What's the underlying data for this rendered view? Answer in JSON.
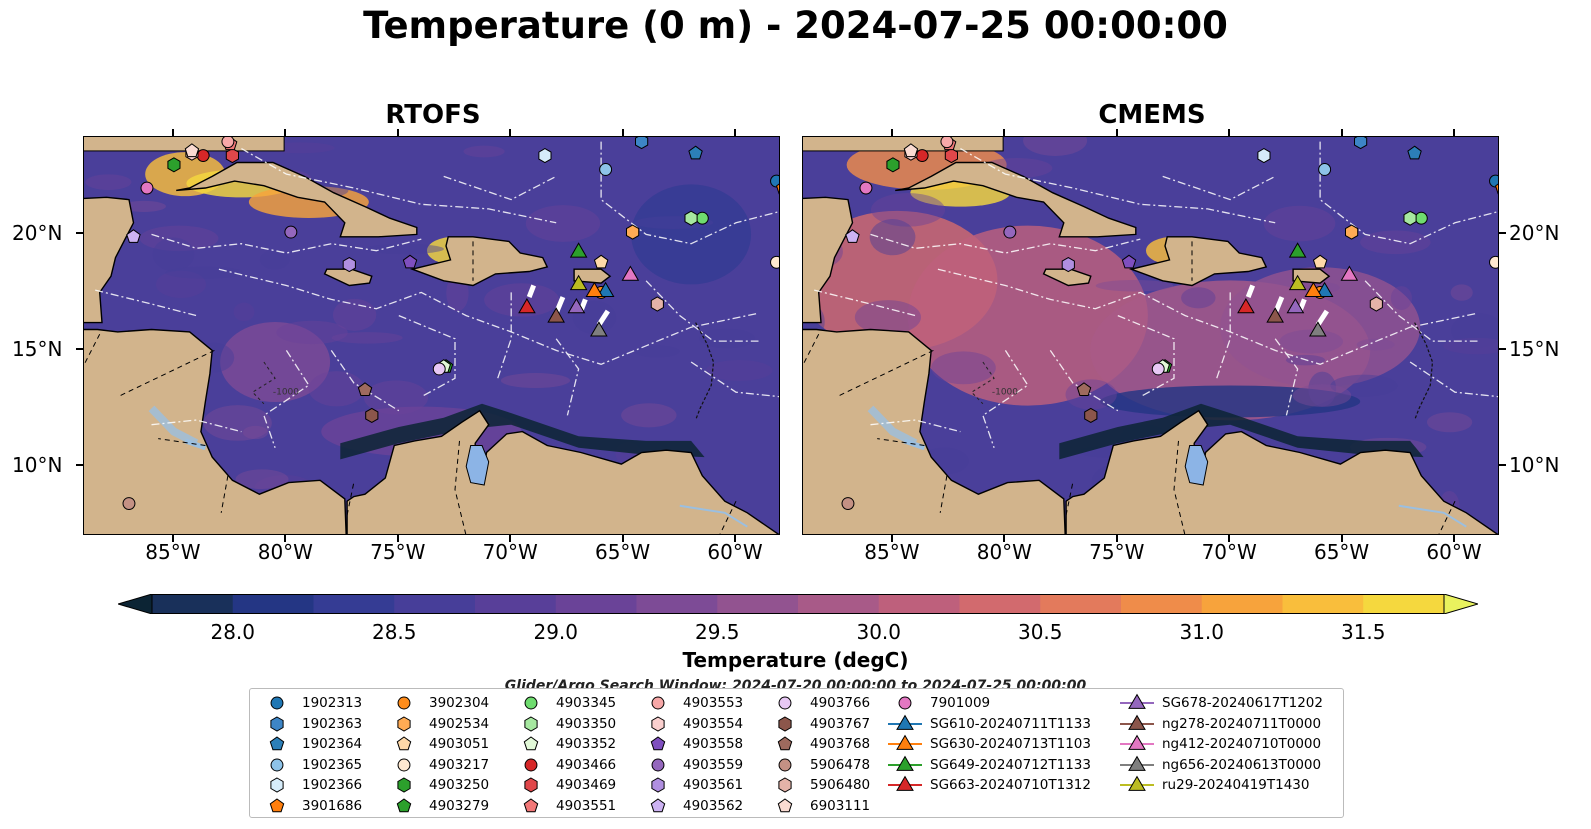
{
  "title": "Temperature (0 m) - 2024-07-25 00:00:00",
  "panels": [
    {
      "title": "RTOFS"
    },
    {
      "title": "CMEMS"
    }
  ],
  "lon_labels": [
    "85°W",
    "80°W",
    "75°W",
    "70°W",
    "65°W",
    "60°W"
  ],
  "lat_labels": [
    "20°N",
    "15°N",
    "10°N"
  ],
  "map_extent": {
    "lon": [
      -89,
      -58
    ],
    "lat": [
      7,
      24.2
    ]
  },
  "colorbar": {
    "label": "Temperature (degC)",
    "ticks": [
      "28.0",
      "28.5",
      "29.0",
      "29.5",
      "30.0",
      "30.5",
      "31.0",
      "31.5"
    ],
    "range": [
      27.75,
      31.75
    ],
    "colors": [
      "#0c2434",
      "#19305a",
      "#243684",
      "#353c94",
      "#473e99",
      "#583f99",
      "#6a4398",
      "#7d4b96",
      "#925390",
      "#a85a88",
      "#be607c",
      "#d26a6e",
      "#e37a5c",
      "#ef8c4a",
      "#f7a33c",
      "#f9be3c",
      "#f5d83e",
      "#e9f25e"
    ]
  },
  "search_window": "Glider/Argo Search Window: 2024-07-20 00:00:00 to 2024-07-25 00:00:00",
  "legend": [
    {
      "id": "1902313",
      "marker": "circle",
      "color": "#1f77b4"
    },
    {
      "id": "1902363",
      "marker": "hexagon",
      "color": "#3d85c6"
    },
    {
      "id": "1902364",
      "marker": "pentagon",
      "color": "#2c7fb8"
    },
    {
      "id": "1902365",
      "marker": "circle",
      "color": "#8ec3e8"
    },
    {
      "id": "1902366",
      "marker": "hexagon",
      "color": "#d6ecfa"
    },
    {
      "id": "3901686",
      "marker": "pentagon",
      "color": "#ff7f0e"
    },
    {
      "id": "3902304",
      "marker": "circle",
      "color": "#ff8c1a"
    },
    {
      "id": "4902534",
      "marker": "hexagon",
      "color": "#ffab54"
    },
    {
      "id": "4903051",
      "marker": "pentagon",
      "color": "#ffd9a8"
    },
    {
      "id": "4903217",
      "marker": "circle",
      "color": "#ffe9d1"
    },
    {
      "id": "4903250",
      "marker": "hexagon",
      "color": "#2ca02c"
    },
    {
      "id": "4903279",
      "marker": "pentagon",
      "color": "#2ca02c"
    },
    {
      "id": "4903345",
      "marker": "circle",
      "color": "#6fdc6f"
    },
    {
      "id": "4903350",
      "marker": "hexagon",
      "color": "#a6e8a0"
    },
    {
      "id": "4903352",
      "marker": "pentagon",
      "color": "#e2f9d8"
    },
    {
      "id": "4903466",
      "marker": "circle",
      "color": "#d62728"
    },
    {
      "id": "4903469",
      "marker": "hexagon",
      "color": "#e0474a"
    },
    {
      "id": "4903551",
      "marker": "pentagon",
      "color": "#f27878"
    },
    {
      "id": "4903553",
      "marker": "circle",
      "color": "#f7a8a8"
    },
    {
      "id": "4903554",
      "marker": "hexagon",
      "color": "#fbd0cf"
    },
    {
      "id": "4903558",
      "marker": "pentagon",
      "color": "#7f4fbf"
    },
    {
      "id": "4903559",
      "marker": "circle",
      "color": "#9467bd"
    },
    {
      "id": "4903561",
      "marker": "hexagon",
      "color": "#b08fe0"
    },
    {
      "id": "4903562",
      "marker": "pentagon",
      "color": "#cdb3f3"
    },
    {
      "id": "4903766",
      "marker": "circle",
      "color": "#e8c8f5"
    },
    {
      "id": "4903767",
      "marker": "hexagon",
      "color": "#8c564b"
    },
    {
      "id": "4903768",
      "marker": "pentagon",
      "color": "#9e6a5e"
    },
    {
      "id": "5906478",
      "marker": "circle",
      "color": "#c49184"
    },
    {
      "id": "5906480",
      "marker": "hexagon",
      "color": "#e4b3a8"
    },
    {
      "id": "6903111",
      "marker": "pentagon",
      "color": "#fadbd2"
    },
    {
      "id": "7901009",
      "marker": "circle",
      "color": "#e377c2"
    },
    {
      "id": "SG610-20240711T1133",
      "marker": "triangle-line",
      "color": "#1f77b4"
    },
    {
      "id": "SG630-20240713T1103",
      "marker": "triangle-line",
      "color": "#ff7f0e"
    },
    {
      "id": "SG649-20240712T1133",
      "marker": "triangle-line",
      "color": "#2ca02c"
    },
    {
      "id": "SG663-20240710T1312",
      "marker": "triangle-line",
      "color": "#d62728"
    },
    {
      "id": "SG678-20240617T1202",
      "marker": "triangle-line",
      "color": "#9467bd"
    },
    {
      "id": "ng278-20240711T0000",
      "marker": "triangle-line",
      "color": "#8c564b"
    },
    {
      "id": "ng412-20240710T0000",
      "marker": "triangle-line",
      "color": "#e377c2"
    },
    {
      "id": "ng656-20240613T0000",
      "marker": "triangle-line",
      "color": "#7f7f7f"
    },
    {
      "id": "ru29-20240419T1430",
      "marker": "triangle-line",
      "color": "#bcbd22"
    }
  ],
  "observations": [
    {
      "id": "1902313",
      "lon": -58.2,
      "lat": 22.3
    },
    {
      "id": "1902363",
      "lon": -64.2,
      "lat": 24.0
    },
    {
      "id": "1902364",
      "lon": -61.8,
      "lat": 23.5
    },
    {
      "id": "1902365",
      "lon": -65.8,
      "lat": 22.8
    },
    {
      "id": "1902366",
      "lon": -68.5,
      "lat": 23.4
    },
    {
      "id": "3901686",
      "lon": -57.9,
      "lat": 22.0
    },
    {
      "id": "3902304",
      "lon": -66.0,
      "lat": 17.5
    },
    {
      "id": "4902534",
      "lon": -64.6,
      "lat": 20.1
    },
    {
      "id": "4903051",
      "lon": -66.0,
      "lat": 18.8
    },
    {
      "id": "4903217",
      "lon": -58.2,
      "lat": 18.8
    },
    {
      "id": "4903250",
      "lon": -85.0,
      "lat": 23.0
    },
    {
      "id": "4903279",
      "lon": -72.9,
      "lat": 14.3
    },
    {
      "id": "4903345",
      "lon": -61.5,
      "lat": 20.7
    },
    {
      "id": "4903350",
      "lon": -62.0,
      "lat": 20.7
    },
    {
      "id": "4903352",
      "lon": -73.0,
      "lat": 14.3
    },
    {
      "id": "4903466",
      "lon": -83.7,
      "lat": 23.4
    },
    {
      "id": "4903469",
      "lon": -82.4,
      "lat": 23.4
    },
    {
      "id": "4903551",
      "lon": -82.5,
      "lat": 23.9
    },
    {
      "id": "4903553",
      "lon": -82.6,
      "lat": 24.0
    },
    {
      "id": "4903554",
      "lon": -84.2,
      "lat": 23.5
    },
    {
      "id": "4903558",
      "lon": -74.5,
      "lat": 18.8
    },
    {
      "id": "4903559",
      "lon": -79.8,
      "lat": 20.1
    },
    {
      "id": "4903561",
      "lon": -77.2,
      "lat": 18.7
    },
    {
      "id": "4903562",
      "lon": -86.8,
      "lat": 19.9
    },
    {
      "id": "4903766",
      "lon": -73.2,
      "lat": 14.2
    },
    {
      "id": "4903767",
      "lon": -76.2,
      "lat": 12.2
    },
    {
      "id": "4903768",
      "lon": -76.5,
      "lat": 13.3
    },
    {
      "id": "5906478",
      "lon": -87.0,
      "lat": 8.4
    },
    {
      "id": "5906480",
      "lon": -63.5,
      "lat": 17.0
    },
    {
      "id": "6903111",
      "lon": -84.2,
      "lat": 23.6
    },
    {
      "id": "7901009",
      "lon": -86.2,
      "lat": 22.0
    },
    {
      "id": "SG610-20240711T1133",
      "lon": -65.8,
      "lat": 17.6
    },
    {
      "id": "SG630-20240713T1103",
      "lon": -66.3,
      "lat": 17.6
    },
    {
      "id": "SG649-20240712T1133",
      "lon": -67.0,
      "lat": 19.3
    },
    {
      "id": "SG663-20240710T1312",
      "lon": -69.3,
      "lat": 16.9
    },
    {
      "id": "SG678-20240617T1202",
      "lon": -67.1,
      "lat": 16.9
    },
    {
      "id": "ng278-20240711T0000",
      "lon": -68.0,
      "lat": 16.5
    },
    {
      "id": "ng412-20240710T0000",
      "lon": -64.7,
      "lat": 18.3
    },
    {
      "id": "ng656-20240613T0000",
      "lon": -66.1,
      "lat": 15.9
    },
    {
      "id": "ru29-20240419T1430",
      "lon": -67.0,
      "lat": 17.9
    }
  ]
}
